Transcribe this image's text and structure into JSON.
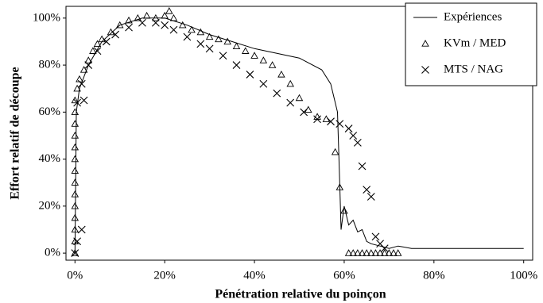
{
  "chart_data": {
    "type": "scatter",
    "x_label": "Pénétration relative du poinçon",
    "y_label": "Effort relatif de découpe",
    "xlim": [
      -2,
      102
    ],
    "ylim": [
      -3,
      105
    ],
    "xticks": [
      {
        "value": 0,
        "label": "0%"
      },
      {
        "value": 20,
        "label": "20%"
      },
      {
        "value": 40,
        "label": "40%"
      },
      {
        "value": 60,
        "label": "60%"
      },
      {
        "value": 80,
        "label": "80%"
      },
      {
        "value": 100,
        "label": "100%"
      }
    ],
    "yticks": [
      {
        "value": 0,
        "label": "0%"
      },
      {
        "value": 20,
        "label": "20%"
      },
      {
        "value": 40,
        "label": "40%"
      },
      {
        "value": 60,
        "label": "60%"
      },
      {
        "value": 80,
        "label": "80%"
      },
      {
        "value": 100,
        "label": "100%"
      }
    ],
    "legend": "upper right",
    "series": [
      {
        "name": "Expériences",
        "style": "line",
        "color": "#000000",
        "x": [
          0,
          0.3,
          1,
          3,
          6,
          10,
          15,
          20,
          25,
          30,
          35,
          40,
          45,
          50,
          55,
          57,
          58.5,
          59,
          59.3,
          60,
          61,
          62,
          63,
          64,
          65,
          66,
          68,
          70,
          72,
          75,
          80,
          85,
          90,
          95,
          100
        ],
        "values": [
          0,
          60,
          70,
          80,
          90,
          97,
          100,
          100,
          97,
          93,
          90,
          87,
          85,
          83,
          78,
          72,
          60,
          30,
          10,
          20,
          12,
          14,
          9,
          10,
          5,
          4,
          3,
          2,
          3,
          2,
          2,
          2,
          2,
          2,
          2
        ]
      },
      {
        "name": "KVm / MED",
        "style": "triangle",
        "color": "#000000",
        "x": [
          0,
          0,
          0,
          0,
          0,
          0,
          0,
          0,
          0,
          0,
          0,
          0,
          0,
          0,
          0.5,
          1,
          2,
          3,
          4,
          5,
          6,
          8,
          10,
          12,
          14,
          16,
          18,
          20,
          21,
          22,
          24,
          26,
          28,
          30,
          32,
          34,
          36,
          38,
          40,
          42,
          44,
          46,
          48,
          50,
          52,
          54,
          56,
          58,
          59,
          60,
          61,
          62,
          63,
          64,
          65,
          66,
          67,
          68,
          69,
          70,
          71,
          72
        ],
        "values": [
          0,
          5,
          10,
          15,
          20,
          25,
          30,
          35,
          40,
          45,
          50,
          55,
          60,
          65,
          70,
          74,
          78,
          82,
          86,
          89,
          91,
          94,
          97,
          99,
          100,
          101,
          100,
          101,
          103,
          100,
          97,
          95,
          94,
          92,
          91,
          90,
          88,
          86,
          84,
          82,
          80,
          76,
          72,
          66,
          61,
          58,
          57,
          43,
          28,
          18,
          0,
          0,
          0,
          0,
          0,
          0,
          0,
          0,
          0,
          0,
          0,
          0
        ]
      },
      {
        "name": "MTS / NAG",
        "style": "cross",
        "color": "#000000",
        "x": [
          0,
          0.5,
          1.5,
          0.5,
          2,
          1.5,
          3,
          5,
          7,
          9,
          12,
          15,
          18,
          20,
          22,
          25,
          28,
          30,
          33,
          36,
          39,
          42,
          45,
          48,
          51,
          54,
          57,
          59,
          61,
          62,
          63,
          64,
          65,
          66,
          67,
          68,
          69
        ],
        "values": [
          0,
          5,
          10,
          64,
          65,
          72,
          80,
          86,
          90,
          93,
          96,
          98,
          98,
          97,
          95,
          92,
          89,
          87,
          84,
          80,
          76,
          72,
          68,
          64,
          60,
          57,
          56,
          55,
          53,
          50,
          47,
          37,
          27,
          24,
          7,
          4,
          2
        ]
      }
    ]
  }
}
